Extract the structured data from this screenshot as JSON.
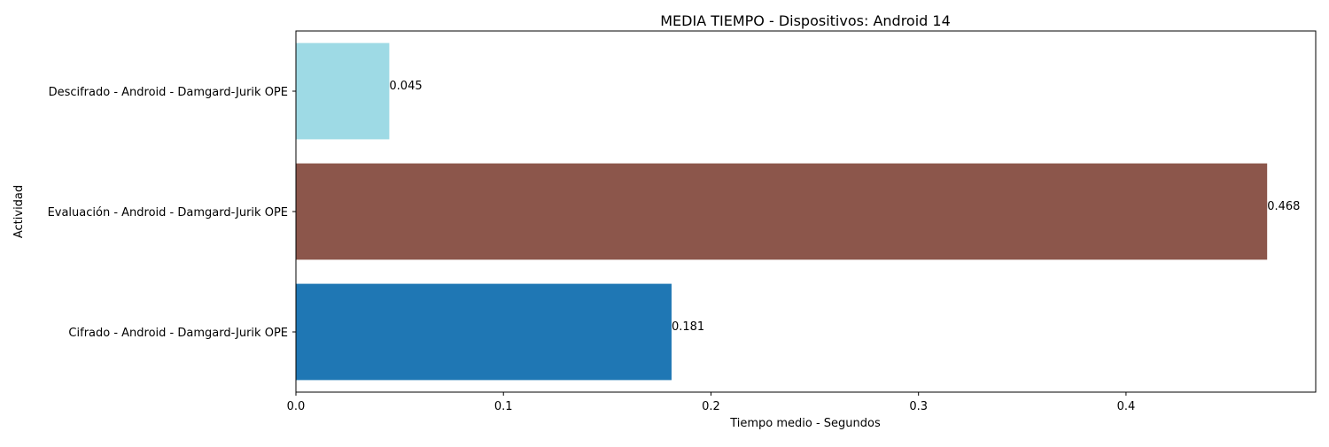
{
  "chart_data": {
    "type": "bar",
    "orientation": "horizontal",
    "title": "MEDIA TIEMPO - Dispositivos: Android 14",
    "xlabel": "Tiempo medio - Segundos",
    "ylabel": "Actividad",
    "xlim": [
      0,
      0.4914
    ],
    "xticks": [
      "0.0",
      "0.1",
      "0.2",
      "0.3",
      "0.4"
    ],
    "grid": false,
    "categories": [
      "Descifrado - Android - Damgard-Jurik OPE",
      "Evaluación - Android - Damgard-Jurik OPE",
      "Cifrado - Android - Damgard-Jurik OPE"
    ],
    "values": [
      0.045,
      0.468,
      0.181
    ],
    "value_labels": [
      "0.045",
      "0.468",
      "0.181"
    ],
    "colors": [
      "#9edae5",
      "#8c564b",
      "#1f77b4"
    ]
  }
}
